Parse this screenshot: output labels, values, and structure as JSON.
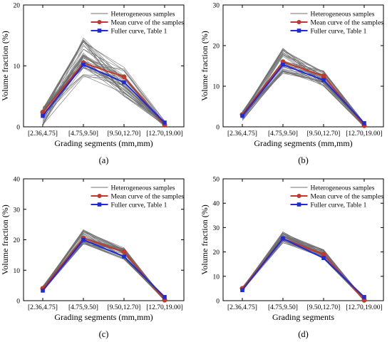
{
  "colors": {
    "samples": "#707070",
    "mean": "#c0392b",
    "fuller": "#1f2bd8",
    "axis": "#000000"
  },
  "chart_data": [
    {
      "panel_label": "(a)",
      "type": "line",
      "categories": [
        "[2.36,4.75]",
        "[4.75,9.50]",
        "[9.50,12.70]",
        "[12.70,19.00]"
      ],
      "xlabel": "Grading segments (mm,mm)",
      "ylabel": "Volume fraction (%)",
      "ylim": [
        0,
        20
      ],
      "yticks": [
        0,
        10,
        20
      ],
      "legend": {
        "position": "top-right",
        "entries": [
          "Heterogeneous samples",
          "Mean curve of the samples",
          "Fuller curve, Table 1"
        ]
      },
      "series": [
        {
          "name": "Heterogeneous samples",
          "marker": "none",
          "values": [
            2.0,
            11.0,
            8.5,
            0.5
          ],
          "spread": [
            [
              0.1,
              3.2
            ],
            [
              8.2,
              14.8
            ],
            [
              5.0,
              9.8
            ],
            [
              0.0,
              1.0
            ]
          ]
        },
        {
          "name": "Mean curve of the samples",
          "marker": "circle",
          "values": [
            2.4,
            10.5,
            8.2,
            0.3
          ]
        },
        {
          "name": "Fuller curve, Table 1",
          "marker": "square",
          "values": [
            1.8,
            10.2,
            7.3,
            0.7
          ]
        }
      ]
    },
    {
      "panel_label": "(b)",
      "type": "line",
      "categories": [
        "[2.36,4.75]",
        "[4.75,9.50]",
        "[9.50,12.70]",
        "[12.70,19.00]"
      ],
      "xlabel": "Grading segments (mm,mm)",
      "ylabel": "Volume fraction (%)",
      "ylim": [
        0,
        30
      ],
      "yticks": [
        0,
        10,
        20,
        30
      ],
      "legend": {
        "position": "top-right",
        "entries": [
          "Heterogeneous samples",
          "Mean curve of the samples",
          "Fuller curve, Table 1"
        ]
      },
      "series": [
        {
          "name": "Heterogeneous samples",
          "marker": "none",
          "values": [
            3.0,
            16.0,
            12.5,
            0.5
          ],
          "spread": [
            [
              1.5,
              3.8
            ],
            [
              13.0,
              19.5
            ],
            [
              10.0,
              13.8
            ],
            [
              0.0,
              1.0
            ]
          ]
        },
        {
          "name": "Mean curve of the samples",
          "marker": "circle",
          "values": [
            3.0,
            16.0,
            12.5,
            0.3
          ]
        },
        {
          "name": "Fuller curve, Table 1",
          "marker": "square",
          "values": [
            2.7,
            15.3,
            11.5,
            0.9
          ]
        }
      ]
    },
    {
      "panel_label": "(c)",
      "type": "line",
      "categories": [
        "[2.36,4.75]",
        "[4.75,9.50]",
        "[9.50,12.70]",
        "[12.70,19.00]"
      ],
      "xlabel": "Grading segments (mm,mm)",
      "ylabel": "Volume fraction (%)",
      "ylim": [
        0,
        40
      ],
      "yticks": [
        0,
        10,
        20,
        30,
        40
      ],
      "legend": {
        "position": "top-right",
        "entries": [
          "Heterogeneous samples",
          "Mean curve of the samples",
          "Fuller curve, Table 1"
        ]
      },
      "series": [
        {
          "name": "Heterogeneous samples",
          "marker": "none",
          "values": [
            3.9,
            21.0,
            16.0,
            0.3
          ],
          "spread": [
            [
              3.0,
              4.8
            ],
            [
              18.5,
              23.5
            ],
            [
              13.5,
              17.5
            ],
            [
              0.0,
              0.8
            ]
          ]
        },
        {
          "name": "Mean curve of the samples",
          "marker": "circle",
          "values": [
            4.0,
            20.5,
            16.0,
            0.2
          ]
        },
        {
          "name": "Fuller curve, Table 1",
          "marker": "square",
          "values": [
            3.3,
            20.0,
            14.5,
            1.2
          ]
        }
      ]
    },
    {
      "panel_label": "(d)",
      "type": "line",
      "categories": [
        "[2.36,4.75]",
        "[4.75,9.50]",
        "[9.50,12.70]",
        "[12.70,19.00]"
      ],
      "xlabel": "Grading segments",
      "ylabel": "Volume fraction (%)",
      "ylim": [
        0,
        50
      ],
      "yticks": [
        0,
        10,
        20,
        30,
        40,
        50
      ],
      "legend": {
        "position": "top-right",
        "entries": [
          "Heterogeneous samples",
          "Mean curve of the samples",
          "Fuller curve, Table 1"
        ]
      },
      "series": [
        {
          "name": "Heterogeneous samples",
          "marker": "none",
          "values": [
            4.8,
            26.0,
            19.5,
            0.3
          ],
          "spread": [
            [
              4.0,
              5.6
            ],
            [
              23.5,
              28.5
            ],
            [
              17.0,
              21.0
            ],
            [
              0.0,
              0.8
            ]
          ]
        },
        {
          "name": "Mean curve of the samples",
          "marker": "circle",
          "values": [
            5.0,
            25.5,
            19.0,
            0.2
          ]
        },
        {
          "name": "Fuller curve, Table 1",
          "marker": "square",
          "values": [
            4.3,
            25.5,
            17.5,
            1.5
          ]
        }
      ]
    }
  ]
}
